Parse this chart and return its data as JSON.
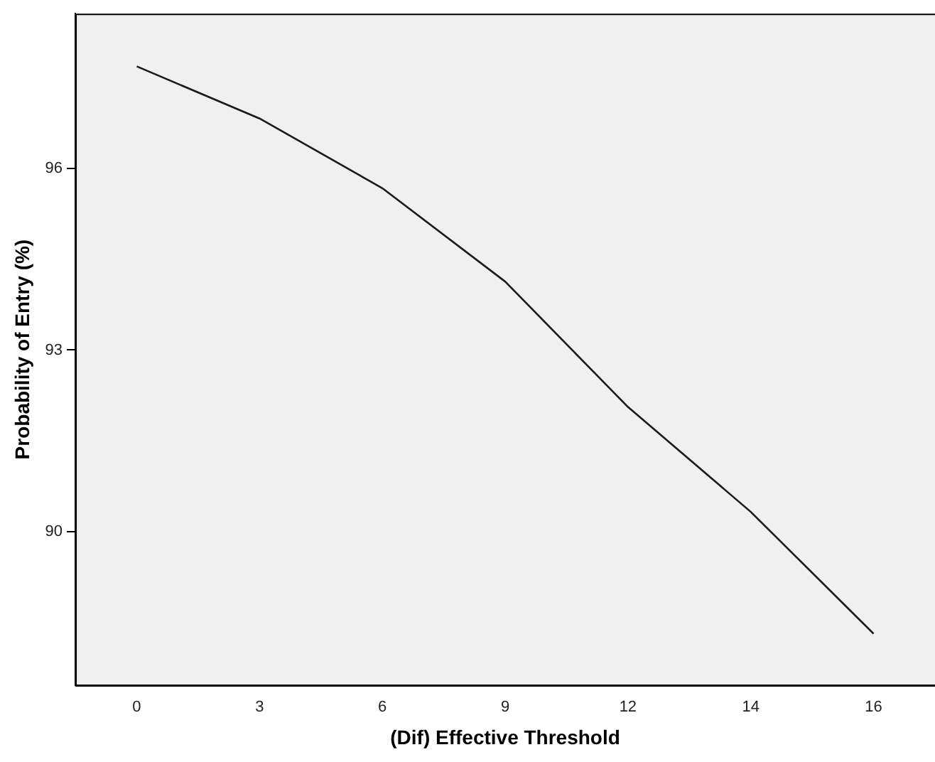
{
  "chart_data": {
    "type": "line",
    "xlabel": "(Dif) Effective Threshold",
    "ylabel": "Probability of Entry (%)",
    "categories": [
      "0",
      "3",
      "6",
      "9",
      "12",
      "14",
      "16"
    ],
    "series": [
      {
        "color": "#1a1a1a",
        "values": [
          97.68,
          96.82,
          95.67,
          94.13,
          92.06,
          90.33,
          88.32
        ]
      }
    ],
    "ylim": [
      87.47,
      98.55
    ],
    "yticks": [
      90,
      93,
      96
    ],
    "grid": false,
    "legend": false,
    "marker": "none",
    "line_style": "solid"
  }
}
